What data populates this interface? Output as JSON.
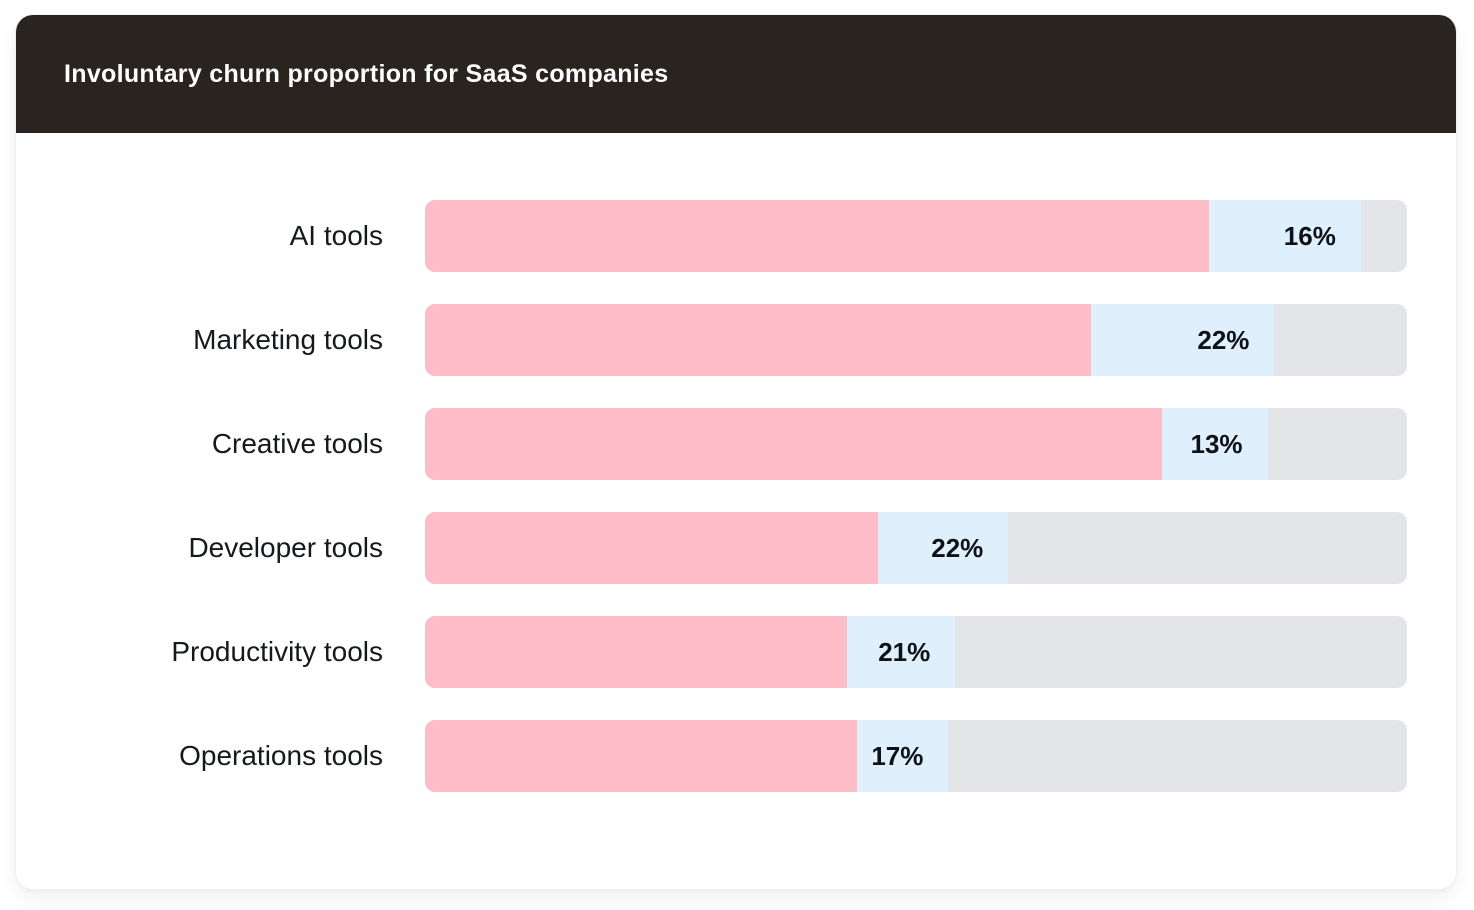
{
  "header": {
    "title": "Involuntary churn proportion for SaaS companies"
  },
  "colors": {
    "header_background": "#2A2420",
    "title_text": "#FFFFFF",
    "segment_primary": "#FFBDC7",
    "segment_highlight": "#DFF0FC",
    "segment_remainder": "#E4E5E9",
    "category_text": "#15181D",
    "value_text": "#0E1116",
    "card_background": "#FFFFFF"
  },
  "chart_data": {
    "type": "bar",
    "orientation": "horizontal",
    "stacked": true,
    "title": "Involuntary churn proportion for SaaS companies",
    "categories": [
      "AI tools",
      "Marketing tools",
      "Creative tools",
      "Developer tools",
      "Productivity tools",
      "Operations tools"
    ],
    "values": [
      16,
      22,
      13,
      22,
      21,
      17
    ],
    "value_labels": [
      "16%",
      "22%",
      "13%",
      "22%",
      "21%",
      "17%"
    ],
    "xlim": [
      0,
      100
    ],
    "legend": false,
    "grid": false,
    "series": [
      {
        "name": "primary-pink-segment",
        "color": "#FFBDC7",
        "widths_pct": [
          79.8,
          67.8,
          75.0,
          46.1,
          43.0,
          44.0
        ]
      },
      {
        "name": "highlight-blue-segment",
        "color": "#DFF0FC",
        "widths_pct": [
          15.5,
          18.7,
          10.8,
          13.3,
          11.0,
          9.3
        ]
      },
      {
        "name": "remainder-gray-segment",
        "color": "#E4E5E9",
        "widths_pct": [
          4.7,
          13.5,
          14.2,
          40.6,
          46.0,
          46.7
        ]
      }
    ]
  },
  "rows": [
    {
      "label": "AI tools",
      "value_label": "16%",
      "pink_pct": 79.8,
      "blue_pct": 15.5
    },
    {
      "label": "Marketing tools",
      "value_label": "22%",
      "pink_pct": 67.8,
      "blue_pct": 18.7
    },
    {
      "label": "Creative tools",
      "value_label": "13%",
      "pink_pct": 75.0,
      "blue_pct": 10.8
    },
    {
      "label": "Developer tools",
      "value_label": "22%",
      "pink_pct": 46.1,
      "blue_pct": 13.3
    },
    {
      "label": "Productivity tools",
      "value_label": "21%",
      "pink_pct": 43.0,
      "blue_pct": 11.0
    },
    {
      "label": "Operations tools",
      "value_label": "17%",
      "pink_pct": 44.0,
      "blue_pct": 9.3
    }
  ]
}
